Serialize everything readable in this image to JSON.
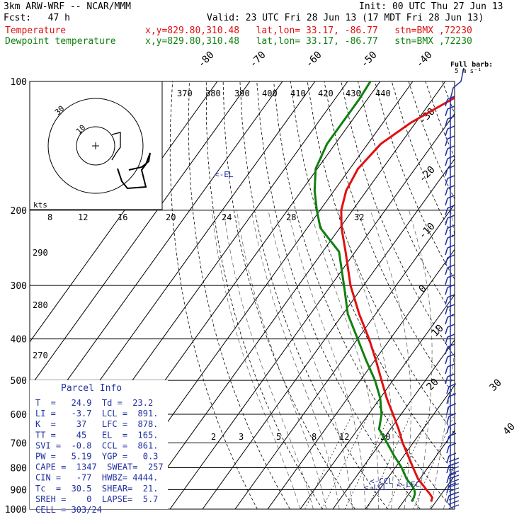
{
  "header": {
    "model": "3km ARW-WRF -- NCAR/MMM",
    "init": "Init: 00 UTC Thu 27 Jun 13",
    "fcst": "Fcst:   47 h",
    "valid": "Valid: 23 UTC Fri 28 Jun 13 (17 MDT Fri 28 Jun 13)",
    "temp_label": "Temperature",
    "dew_label": "Dewpoint temperature",
    "loc": "x,y=829.80,310.48   lat,lon= 33.17, -86.77   stn=BMX ,72230"
  },
  "wind_legend": {
    "title": "Full barb:",
    "unit": "5 m s-1",
    "title_line2": "5 m s⁻¹"
  },
  "hodograph": {
    "units": "kts",
    "ring_labels": [
      "10",
      "30"
    ]
  },
  "annotations": {
    "el": "<-EL",
    "ccl": "<-CCL",
    "lcl": "<-LCL",
    "lfc": "<-LFC"
  },
  "parcel_info": {
    "title": "Parcel Info",
    "rows": [
      "T  =   24.9  Td =  23.2",
      "LI =   -3.7  LCL =  891.",
      "K  =    37   LFC =  878.",
      "TT =    45   EL  =  165.",
      "SVI =  -0.8  CCL =  861.",
      "PW =   5.19  YGP =   0.3",
      "CAPE =  1347  SWEAT=  257",
      "CIN =   -77  HWBZ= 4444.",
      "Tc  =  30.5  SHEAR=  21.",
      "SREH =    0  LAPSE=  5.7",
      "CELL = 303/24"
    ]
  },
  "colors": {
    "temperature": "#e01010",
    "dewpoint": "#108010",
    "axes": "#000000",
    "barbs": "#2030a0"
  },
  "chart_data": {
    "type": "line",
    "title": "",
    "ylabel": "",
    "pressure_levels": [
      100,
      200,
      300,
      400,
      500,
      600,
      700,
      800,
      900,
      1000
    ],
    "isotherm_labels": [
      "-80",
      "-70",
      "-60",
      "-50",
      "-40",
      "-30",
      "-20",
      "-10",
      "0",
      "10",
      "20",
      "30",
      "40"
    ],
    "theta_labels": [
      "370",
      "380",
      "390",
      "400",
      "410",
      "420",
      "430",
      "440"
    ],
    "theta_e_labels": [
      "290",
      "280",
      "270"
    ],
    "mixing_ratio_labels_top": [
      "8",
      "12",
      "16",
      "20",
      "24",
      "28",
      "32"
    ],
    "mixing_ratio_labels_bottom": [
      "2",
      "3",
      "5",
      "8",
      "12",
      "20"
    ],
    "series": [
      {
        "name": "Temperature",
        "pressure": [
          960,
          940,
          920,
          900,
          880,
          850,
          800,
          750,
          700,
          650,
          600,
          550,
          500,
          450,
          400,
          350,
          300,
          250,
          220,
          200,
          180,
          160,
          140,
          125,
          110,
          100
        ],
        "temperature": [
          28.5,
          28,
          26.3,
          24.4,
          22.5,
          19.5,
          15.5,
          11.3,
          6.8,
          2.5,
          -2.5,
          -8,
          -13.5,
          -19.5,
          -26.5,
          -35,
          -44,
          -53,
          -59.5,
          -63.5,
          -66.3,
          -67.5,
          -66,
          -61.5,
          -54,
          -47.5
        ]
      },
      {
        "name": "Dewpoint temperature",
        "pressure": [
          960,
          940,
          920,
          900,
          880,
          850,
          800,
          750,
          700,
          650,
          600,
          550,
          500,
          450,
          400,
          350,
          300,
          250,
          220,
          200,
          180,
          160,
          140,
          125,
          110,
          100
        ],
        "dewpoint": [
          22.5,
          22.3,
          21.8,
          20.7,
          19,
          16,
          12,
          7,
          2,
          -3.5,
          -6,
          -10,
          -15.5,
          -22.5,
          -30,
          -38.5,
          -46,
          -55,
          -66,
          -71,
          -76,
          -80.5,
          -82.5,
          -82.5,
          -82.5,
          -83
        ]
      }
    ]
  }
}
